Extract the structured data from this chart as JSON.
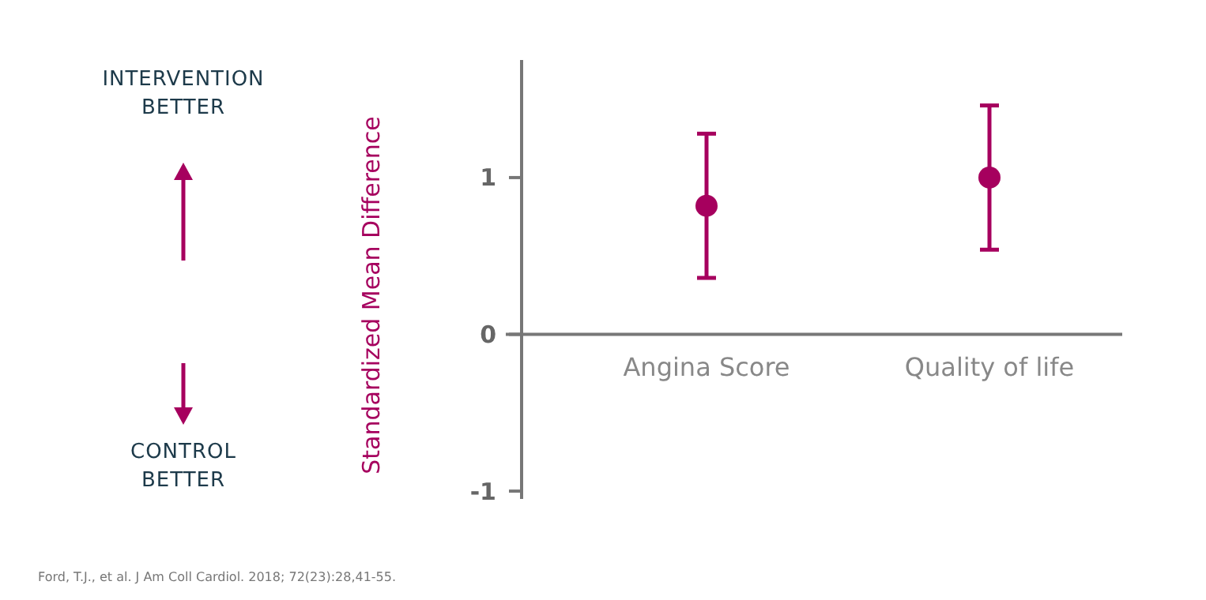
{
  "chart_data": {
    "type": "scatter",
    "ylabel": "Standardized Mean Difference",
    "categories": [
      "Angina Score",
      "Quality of life"
    ],
    "series": [
      {
        "color": "#a6005e",
        "values": [
          0.82,
          1.0
        ],
        "errors": [
          [
            0.36,
            1.28
          ],
          [
            0.54,
            1.46
          ]
        ]
      }
    ],
    "ylim": [
      -1.05,
      1.75
    ],
    "yticks": [
      -1,
      0,
      1
    ],
    "marker": "circle",
    "grid": false,
    "annotations": [
      "INTERVENTION BETTER",
      "CONTROL BETTER",
      "Ford, T.J., et al. J Am Coll Cardiol. 2018; 72(23):28,41-55."
    ]
  }
}
